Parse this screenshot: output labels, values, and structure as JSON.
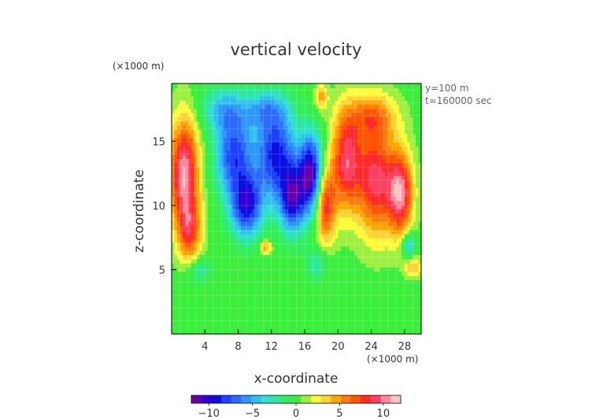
{
  "chart_data": {
    "type": "heatmap",
    "title": "vertical velocity",
    "xlabel": "x-coordinate",
    "ylabel": "z-coordinate",
    "x_unit": "(×1000 m)",
    "y_unit": "(×1000 m)",
    "annotations": [
      "y=100 m",
      "t=160000 sec"
    ],
    "xlim": [
      0,
      30
    ],
    "ylim": [
      0,
      19.5
    ],
    "x_ticks": [
      4,
      8,
      12,
      16,
      20,
      24,
      28
    ],
    "y_ticks": [
      5,
      10,
      15
    ],
    "grid": true,
    "colorbar": {
      "range": [
        -12,
        12
      ],
      "ticks": [
        -10,
        -5,
        0,
        5,
        10
      ],
      "colors": [
        "#6a00a8",
        "#3300d0",
        "#0a10e0",
        "#1e40ff",
        "#2b6cff",
        "#2f96ff",
        "#30bff0",
        "#2fe0d0",
        "#2ee89a",
        "#33ee5a",
        "#3bee3b",
        "#9ef040",
        "#fffb3a",
        "#ffd23a",
        "#ffa500",
        "#ff7a10",
        "#ff5500",
        "#ff2a2a",
        "#ff4060",
        "#ff8a9a",
        "#ffc4c4"
      ]
    },
    "features": [
      {
        "x": 1.5,
        "z": 12.5,
        "value": 11,
        "sx": 1.7,
        "sz": 4.2
      },
      {
        "x": 2.2,
        "z": 8.0,
        "value": 6,
        "sx": 1.4,
        "sz": 2.4
      },
      {
        "x": 7.5,
        "z": 14.0,
        "value": -8,
        "sx": 2.2,
        "sz": 3.2
      },
      {
        "x": 9.0,
        "z": 10.0,
        "value": -9,
        "sx": 1.9,
        "sz": 2.4
      },
      {
        "x": 12.5,
        "z": 14.0,
        "value": -9,
        "sx": 2.4,
        "sz": 3.5
      },
      {
        "x": 14.5,
        "z": 10.5,
        "value": -9,
        "sx": 1.5,
        "sz": 2.6
      },
      {
        "x": 16.7,
        "z": 12.5,
        "value": -11,
        "sx": 1.4,
        "sz": 3.0
      },
      {
        "x": 6.0,
        "z": 17.5,
        "value": -4,
        "sx": 2.5,
        "sz": 1.7
      },
      {
        "x": 11.0,
        "z": 17.5,
        "value": -4,
        "sx": 2.8,
        "sz": 1.4
      },
      {
        "x": 18.5,
        "z": 10.0,
        "value": 8,
        "sx": 1.2,
        "sz": 2.8
      },
      {
        "x": 21.0,
        "z": 13.5,
        "value": 9,
        "sx": 1.8,
        "sz": 3.8
      },
      {
        "x": 24.5,
        "z": 12.0,
        "value": 9,
        "sx": 2.2,
        "sz": 4.2
      },
      {
        "x": 27.5,
        "z": 11.0,
        "value": 10,
        "sx": 1.5,
        "sz": 3.2
      },
      {
        "x": 24.0,
        "z": 17.0,
        "value": 5,
        "sx": 3.0,
        "sz": 1.8
      },
      {
        "x": 28.5,
        "z": 7.0,
        "value": -5,
        "sx": 0.8,
        "sz": 1.0
      },
      {
        "x": 29.0,
        "z": 5.2,
        "value": 4,
        "sx": 1.0,
        "sz": 0.8
      },
      {
        "x": 3.2,
        "z": 5.0,
        "value": -3,
        "sx": 1.5,
        "sz": 1.0
      },
      {
        "x": 17.5,
        "z": 5.5,
        "value": -3,
        "sx": 1.2,
        "sz": 1.2
      },
      {
        "x": 18.0,
        "z": 18.5,
        "value": 5,
        "sx": 0.7,
        "sz": 1.0
      },
      {
        "x": 11.3,
        "z": 6.8,
        "value": 5,
        "sx": 0.7,
        "sz": 0.5
      }
    ]
  }
}
